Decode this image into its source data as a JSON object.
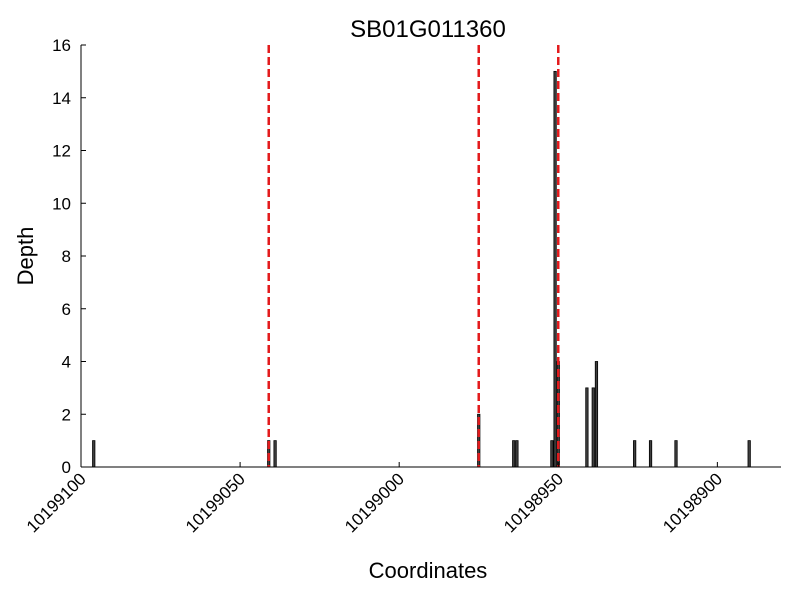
{
  "chart_data": {
    "type": "bar",
    "title": "SB01G011360",
    "xlabel": "Coordinates",
    "ylabel": "Depth",
    "xlim": [
      10199100,
      10198880
    ],
    "x_reversed": true,
    "ylim": [
      0,
      16
    ],
    "xticks": [
      10199100,
      10199050,
      10199000,
      10198950,
      10198900
    ],
    "xtick_labels": [
      "10199100",
      "10199050",
      "10199000",
      "10198950",
      "10198900"
    ],
    "yticks": [
      0,
      2,
      4,
      6,
      8,
      10,
      12,
      14,
      16
    ],
    "ytick_labels": [
      "0",
      "2",
      "4",
      "6",
      "8",
      "10",
      "12",
      "14",
      "16"
    ],
    "bars": [
      {
        "x": 10199096,
        "y": 1
      },
      {
        "x": 10199041,
        "y": 1
      },
      {
        "x": 10199039,
        "y": 1
      },
      {
        "x": 10198975,
        "y": 2
      },
      {
        "x": 10198964,
        "y": 1
      },
      {
        "x": 10198963,
        "y": 1
      },
      {
        "x": 10198952,
        "y": 1
      },
      {
        "x": 10198951,
        "y": 15
      },
      {
        "x": 10198950,
        "y": 4
      },
      {
        "x": 10198941,
        "y": 3
      },
      {
        "x": 10198939,
        "y": 3
      },
      {
        "x": 10198938,
        "y": 4
      },
      {
        "x": 10198926,
        "y": 1
      },
      {
        "x": 10198921,
        "y": 1
      },
      {
        "x": 10198913,
        "y": 1
      },
      {
        "x": 10198890,
        "y": 1
      }
    ],
    "markers": [
      10199041,
      10198975,
      10198950
    ],
    "bar_color": "#404040",
    "marker_color": "#e31a1c",
    "grid": false
  }
}
